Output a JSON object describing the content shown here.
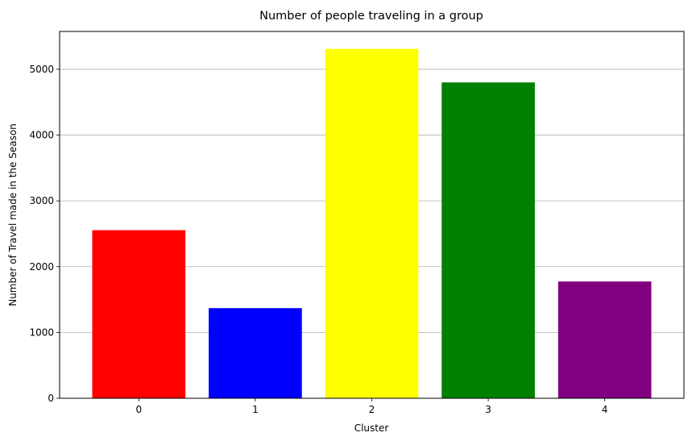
{
  "chart_data": {
    "type": "bar",
    "title": "Number of people traveling in a group",
    "xlabel": "Cluster",
    "ylabel": "Number of Travel made in the Season",
    "categories": [
      "0",
      "1",
      "2",
      "3",
      "4"
    ],
    "values": [
      2555,
      1370,
      5310,
      4800,
      1775
    ],
    "colors": [
      "#ff0000",
      "#0000ff",
      "#ffff00",
      "#008000",
      "#800080"
    ],
    "ylim": [
      0,
      5575
    ],
    "yticks": [
      0,
      1000,
      2000,
      3000,
      4000,
      5000
    ],
    "ytick_labels": [
      "0",
      "1000",
      "2000",
      "3000",
      "4000",
      "5000"
    ],
    "grid": {
      "y": true,
      "x": false,
      "color": "#b0b0b0"
    }
  }
}
